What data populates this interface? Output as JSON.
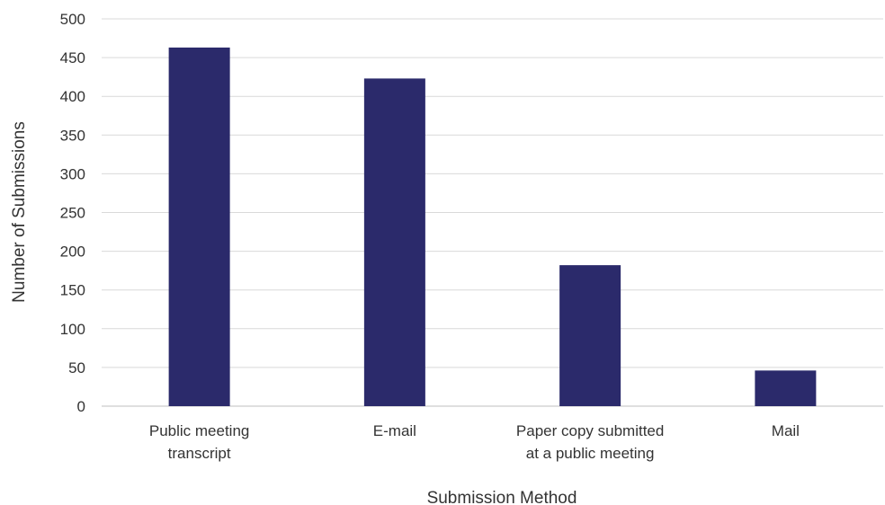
{
  "chart_data": {
    "type": "bar",
    "categories": [
      [
        "Public meeting",
        "transcript"
      ],
      [
        "E-mail"
      ],
      [
        "Paper copy submitted",
        "at a public meeting"
      ],
      [
        "Mail"
      ]
    ],
    "values": [
      463,
      423,
      182,
      46
    ],
    "title": "",
    "xlabel": "Submission Method",
    "ylabel": "Number of Submissions",
    "ylim": [
      0,
      500
    ],
    "yticks": [
      0,
      50,
      100,
      150,
      200,
      250,
      300,
      350,
      400,
      450,
      500
    ],
    "grid": true,
    "bar_color": "#2b2a6b"
  }
}
